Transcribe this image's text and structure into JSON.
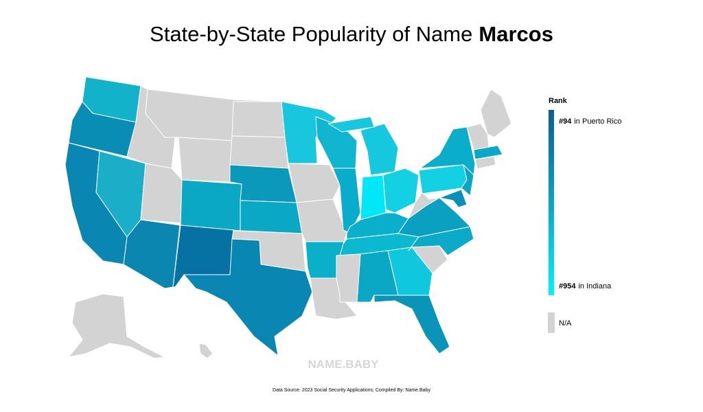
{
  "title": {
    "text": "State-by-State Popularity of Name",
    "name": "Marcos"
  },
  "legend": {
    "title": "Rank",
    "top": {
      "rank": "#94",
      "place": "in Puerto Rico"
    },
    "bottom": {
      "rank": "#954",
      "place": "in Indiana"
    },
    "na": "N/A"
  },
  "watermark": "NAME.BABY",
  "source": "Data Source: 2023 Social Security Applications; Compiled By: Name.Baby"
}
